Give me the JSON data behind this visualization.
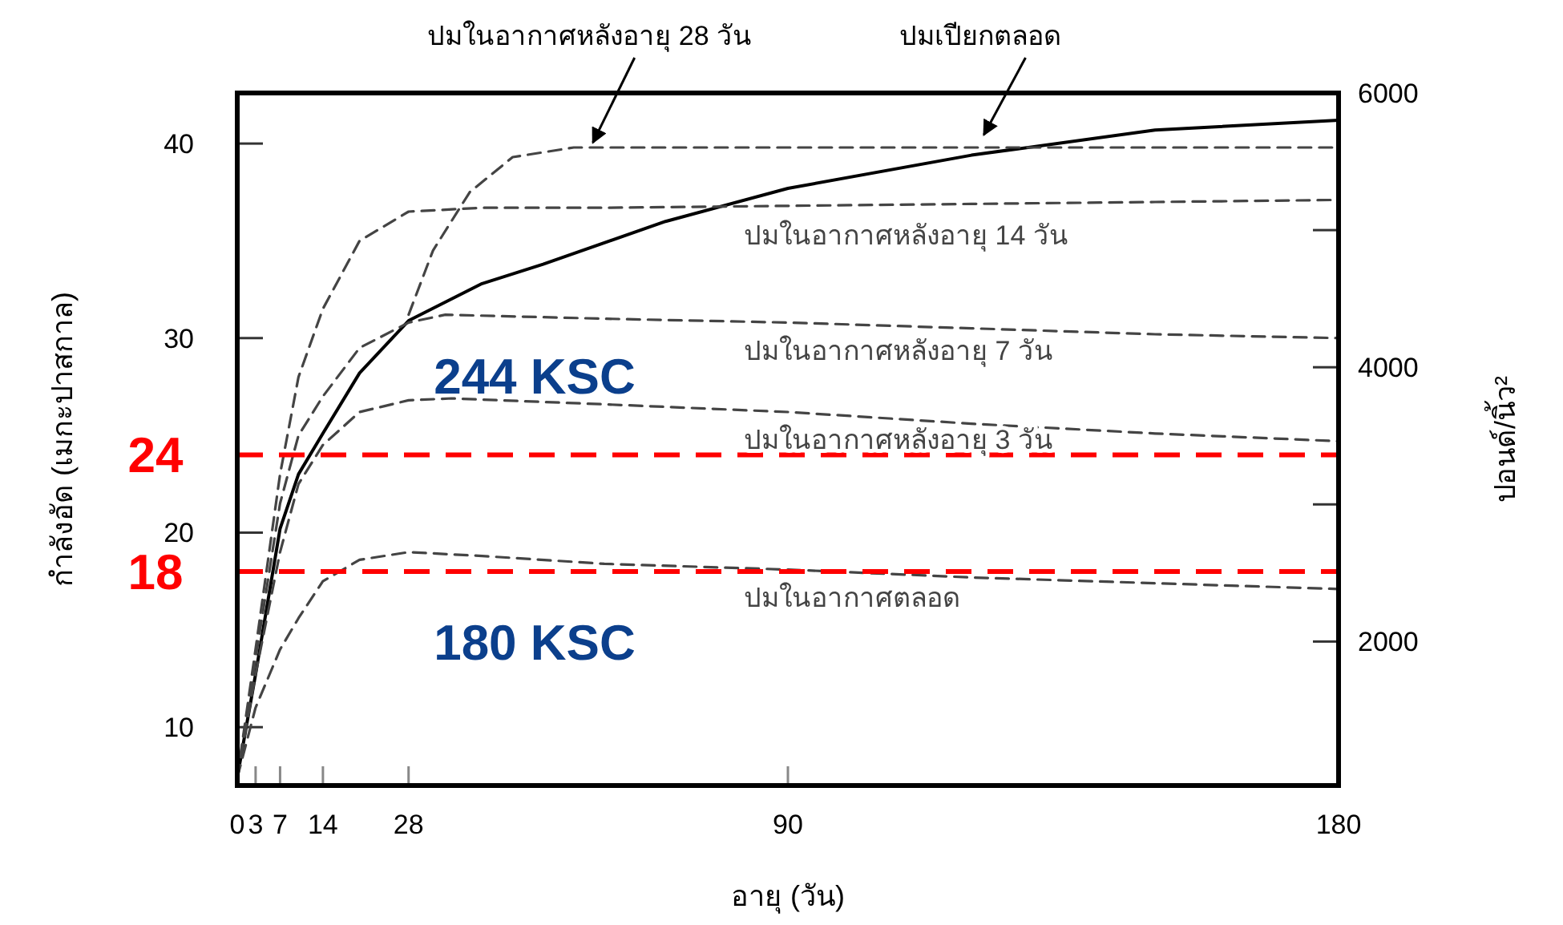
{
  "chart_data": {
    "type": "line",
    "xlabel": "อายุ (วัน)",
    "ylabel": "กำลังอัด (เมกะปาสกาล)",
    "y2label": "ปอนด์/นิ้ว²",
    "xlim": [
      0,
      180
    ],
    "xticks": [
      0,
      3,
      7,
      14,
      28,
      90,
      180
    ],
    "ylim": [
      7,
      42.6
    ],
    "yticks": [
      10,
      20,
      30,
      40
    ],
    "y2lim": [
      950,
      6000
    ],
    "y2ticks": [
      2000,
      {
        "value": 3000,
        "label": null
      },
      4000,
      {
        "value": 5000,
        "label": null
      },
      6000
    ],
    "grid": false,
    "line_style": "dashed",
    "series": [
      {
        "color": "#000000",
        "line_style": "solid",
        "x": [
          0,
          3,
          7,
          10,
          14,
          20,
          28,
          40,
          50,
          70,
          90,
          120,
          150,
          180
        ],
        "values": [
          7.4,
          12.7,
          20.2,
          23,
          25.1,
          28.2,
          30.9,
          32.8,
          33.8,
          36,
          37.7,
          39.4,
          40.7,
          41.2
        ]
      },
      {
        "name": "ปมในอากาศหลังอายุ 14 วัน",
        "color": "#444444",
        "x": [
          0,
          3,
          7,
          10,
          14,
          20,
          28,
          40,
          60,
          90,
          120,
          150,
          180
        ],
        "values": [
          7.4,
          14,
          23,
          28,
          31.5,
          35,
          36.5,
          36.7,
          36.7,
          36.8,
          36.9,
          37,
          37.1
        ]
      },
      {
        "name": "ปมในอากาศหลังอายุ 7 วัน",
        "color": "#444444",
        "x": [
          0,
          3,
          7,
          10,
          14,
          20,
          28,
          34,
          60,
          90,
          120,
          150,
          180
        ],
        "values": [
          7.4,
          13.5,
          21.5,
          25,
          27,
          29.5,
          30.8,
          31.2,
          31,
          30.8,
          30.5,
          30.2,
          30.0
        ]
      },
      {
        "name": "ปมในอากาศหลังอายุ 3 วัน",
        "color": "#444444",
        "x": [
          0,
          3,
          7,
          10,
          14,
          20,
          28,
          35,
          60,
          90,
          120,
          150,
          180
        ],
        "values": [
          7.4,
          12.7,
          19,
          22.5,
          24.5,
          26.2,
          26.8,
          26.9,
          26.6,
          26.2,
          25.6,
          25.1,
          24.7
        ]
      },
      {
        "name": "ปมในอากาศตลอด",
        "color": "#444444",
        "x": [
          0,
          3,
          7,
          10,
          14,
          20,
          28,
          40,
          60,
          90,
          120,
          150,
          180
        ],
        "values": [
          7.4,
          11,
          14,
          15.6,
          17.5,
          18.6,
          19.0,
          18.8,
          18.4,
          18.1,
          17.7,
          17.4,
          17.1
        ]
      },
      {
        "color": "#444444",
        "x": [
          28,
          32,
          38,
          45,
          55,
          90,
          120,
          150,
          180
        ],
        "values": [
          31.2,
          34.5,
          37.5,
          39.3,
          39.8,
          39.8,
          39.8,
          39.8,
          39.8
        ]
      }
    ],
    "ref_lines": [
      {
        "axis": "y",
        "value": 24,
        "label": "24",
        "color": "#ff0000",
        "line_style": "dashed"
      },
      {
        "axis": "y",
        "value": 18,
        "label": "18",
        "color": "#ff0000",
        "line_style": "dashed"
      }
    ],
    "annotations": [
      {
        "text": "ปมในอากาศหลังอายุ 28 วัน",
        "x": 57.6,
        "y": 39.8
      },
      {
        "text": "ปมเปียกตลอด",
        "x": 121.5,
        "y": 40.2
      },
      "244 KSC",
      "180 KSC"
    ]
  }
}
